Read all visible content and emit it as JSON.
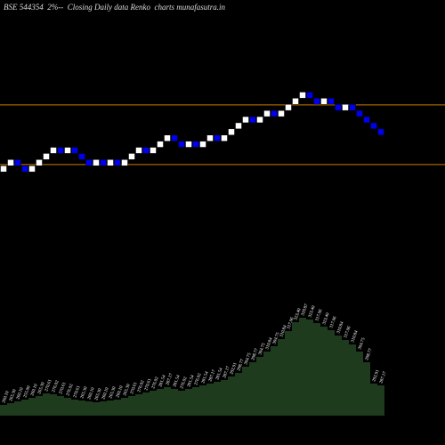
{
  "chart_data": {
    "type": "renko",
    "title": "BSE 544354  2%--  Closing Daily data Renko  charts munafasutra.in",
    "brick_percent": 2,
    "log_scale": true,
    "ylim": [
      250,
      444
    ],
    "up_color": "#ffffff",
    "down_color": "#0000ee",
    "values": [
      260.1,
      265.3,
      260.1,
      255,
      260.1,
      265.3,
      270.61,
      276.02,
      270.61,
      276.02,
      270.61,
      265.3,
      260.1,
      265.3,
      260.1,
      265.3,
      260.1,
      265.3,
      270.61,
      276.02,
      270.61,
      276.02,
      281.54,
      287.17,
      281.54,
      276.02,
      281.54,
      276.02,
      281.54,
      287.17,
      281.54,
      287.17,
      292.91,
      298.77,
      304.75,
      298.77,
      304.75,
      310.84,
      304.75,
      310.84,
      317.06,
      323.4,
      329.87,
      323.4,
      317.06,
      323.4,
      317.06,
      310.84,
      317.06,
      310.84,
      304.75,
      298.77,
      292.91,
      287.17
    ],
    "value_labels": [
      "260.10",
      "265.30",
      "260.10",
      "255.00",
      "260.10",
      "265.30",
      "270.61",
      "276.02",
      "270.61",
      "276.02",
      "270.61",
      "265.30",
      "260.10",
      "265.30",
      "260.10",
      "265.30",
      "260.10",
      "265.30",
      "270.61",
      "276.02",
      "270.61",
      "276.02",
      "281.54",
      "287.17",
      "281.54",
      "276.02",
      "281.54",
      "276.02",
      "281.54",
      "287.17",
      "281.54",
      "287.17",
      "292.91",
      "298.77",
      "304.75",
      "298.77",
      "304.75",
      "310.84",
      "304.75",
      "310.84",
      "317.06",
      "323.40",
      "329.87",
      "323.40",
      "317.06",
      "323.40",
      "317.06",
      "310.84",
      "317.06",
      "310.84",
      "304.75",
      "298.77",
      "292.91",
      "287.17"
    ],
    "lines": [
      316.5,
      261.1
    ],
    "line_color": "#cc7a00",
    "volume": [
      12,
      14,
      16,
      18,
      20,
      22,
      25,
      24,
      22,
      20,
      18,
      17,
      16,
      15,
      16,
      17,
      18,
      20,
      22,
      24,
      26,
      28,
      30,
      32,
      30,
      28,
      30,
      32,
      34,
      36,
      38,
      40,
      44,
      48,
      55,
      60,
      66,
      72,
      78,
      86,
      95,
      105,
      110,
      108,
      104,
      100,
      96,
      90,
      85,
      80,
      72,
      60,
      36,
      34
    ],
    "volume_ylim": [
      0,
      120
    ],
    "volume_color": "#1e3b1e"
  }
}
